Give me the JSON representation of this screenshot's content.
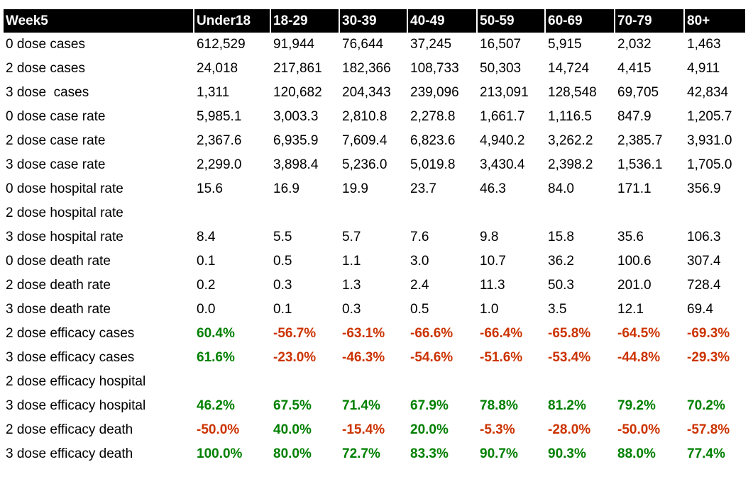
{
  "colors": {
    "header_bg": "#000000",
    "header_text": "#ffffff",
    "body_text": "#000000",
    "positive": "#008000",
    "negative": "#cc3300",
    "background": "#ffffff"
  },
  "chart_data": {
    "type": "table",
    "title": "Week5",
    "header": [
      "Week5",
      "Under18",
      "18-29",
      "30-39",
      "40-49",
      "50-59",
      "60-69",
      "70-79",
      "80+"
    ],
    "rows": [
      {
        "label": "0 dose cases",
        "style": "plain",
        "values": [
          "612,529",
          "91,944",
          "76,644",
          "37,245",
          "16,507",
          "5,915",
          "2,032",
          "1,463"
        ]
      },
      {
        "label": "2 dose cases",
        "style": "plain",
        "values": [
          "24,018",
          "217,861",
          "182,366",
          "108,733",
          "50,303",
          "14,724",
          "4,415",
          "4,911"
        ]
      },
      {
        "label": "3 dose  cases",
        "style": "plain",
        "values": [
          "1,311",
          "120,682",
          "204,343",
          "239,096",
          "213,091",
          "128,548",
          "69,705",
          "42,834"
        ]
      },
      {
        "label": "0 dose case rate",
        "style": "plain",
        "values": [
          "5,985.1",
          "3,003.3",
          "2,810.8",
          "2,278.8",
          "1,661.7",
          "1,116.5",
          "847.9",
          "1,205.7"
        ]
      },
      {
        "label": "2 dose case rate",
        "style": "plain",
        "values": [
          "2,367.6",
          "6,935.9",
          "7,609.4",
          "6,823.6",
          "4,940.2",
          "3,262.2",
          "2,385.7",
          "3,931.0"
        ]
      },
      {
        "label": "3 dose case rate",
        "style": "plain",
        "values": [
          "2,299.0",
          "3,898.4",
          "5,236.0",
          "5,019.8",
          "3,430.4",
          "2,398.2",
          "1,536.1",
          "1,705.0"
        ]
      },
      {
        "label": "0 dose hospital rate",
        "style": "plain",
        "values": [
          "15.6",
          "16.9",
          "19.9",
          "23.7",
          "46.3",
          "84.0",
          "171.1",
          "356.9"
        ]
      },
      {
        "label": "2 dose hospital rate",
        "style": "plain",
        "values": [
          "",
          "",
          "",
          "",
          "",
          "",
          "",
          ""
        ]
      },
      {
        "label": "3 dose hospital rate",
        "style": "plain",
        "values": [
          "8.4",
          "5.5",
          "5.7",
          "7.6",
          "9.8",
          "15.8",
          "35.6",
          "106.3"
        ]
      },
      {
        "label": "0 dose death rate",
        "style": "plain",
        "values": [
          "0.1",
          "0.5",
          "1.1",
          "3.0",
          "10.7",
          "36.2",
          "100.6",
          "307.4"
        ]
      },
      {
        "label": "2 dose death rate",
        "style": "plain",
        "values": [
          "0.2",
          "0.3",
          "1.3",
          "2.4",
          "11.3",
          "50.3",
          "201.0",
          "728.4"
        ]
      },
      {
        "label": "3 dose death rate",
        "style": "plain",
        "values": [
          "0.0",
          "0.1",
          "0.3",
          "0.5",
          "1.0",
          "3.5",
          "12.1",
          "69.4"
        ]
      },
      {
        "label": "2 dose efficacy cases",
        "style": "efficacy",
        "values": [
          "60.4%",
          "-56.7%",
          "-63.1%",
          "-66.6%",
          "-66.4%",
          "-65.8%",
          "-64.5%",
          "-69.3%"
        ]
      },
      {
        "label": "3 dose efficacy cases",
        "style": "efficacy",
        "values": [
          "61.6%",
          "-23.0%",
          "-46.3%",
          "-54.6%",
          "-51.6%",
          "-53.4%",
          "-44.8%",
          "-29.3%"
        ]
      },
      {
        "label": "2 dose efficacy hospital",
        "style": "efficacy",
        "values": [
          "",
          "",
          "",
          "",
          "",
          "",
          "",
          ""
        ]
      },
      {
        "label": "3 dose efficacy hospital",
        "style": "efficacy",
        "values": [
          "46.2%",
          "67.5%",
          "71.4%",
          "67.9%",
          "78.8%",
          "81.2%",
          "79.2%",
          "70.2%"
        ]
      },
      {
        "label": "2 dose efficacy death",
        "style": "efficacy",
        "values": [
          "-50.0%",
          "40.0%",
          "-15.4%",
          "20.0%",
          "-5.3%",
          "-28.0%",
          "-50.0%",
          "-57.8%"
        ]
      },
      {
        "label": "3 dose efficacy death",
        "style": "efficacy",
        "values": [
          "100.0%",
          "80.0%",
          "72.7%",
          "83.3%",
          "90.7%",
          "90.3%",
          "88.0%",
          "77.4%"
        ]
      }
    ],
    "color_rules": {
      "negative_values": "red",
      "positive_values": "green",
      "applies_to": "efficacy rows"
    },
    "legend_position": "none",
    "grid": false
  }
}
